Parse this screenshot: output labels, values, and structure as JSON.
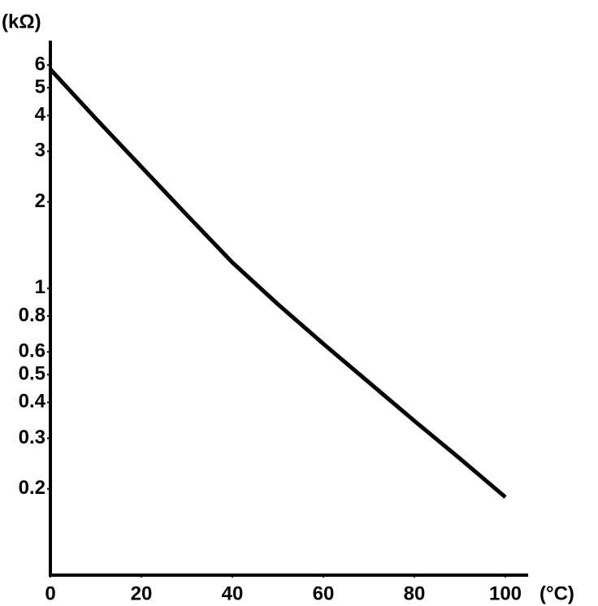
{
  "chart_data": {
    "type": "line",
    "y_label": "(kΩ)",
    "x_label": "(°C)",
    "x": [
      0,
      10,
      20,
      30,
      40,
      50,
      60,
      70,
      80,
      90,
      100
    ],
    "series": [
      {
        "color": "#000000",
        "values": [
          5.8,
          3.9,
          2.65,
          1.8,
          1.23,
          0.88,
          0.64,
          0.47,
          0.345,
          0.255,
          0.187
        ]
      }
    ],
    "xlim": [
      0,
      105
    ],
    "xticks": [
      0,
      20,
      40,
      60,
      80,
      100
    ],
    "ylim": [
      0.1,
      7.3
    ],
    "yticks": [
      0.2,
      0.3,
      0.4,
      0.5,
      0.6,
      0.8,
      1,
      2,
      3,
      4,
      5,
      6
    ],
    "yscale": "log",
    "grid": false
  }
}
